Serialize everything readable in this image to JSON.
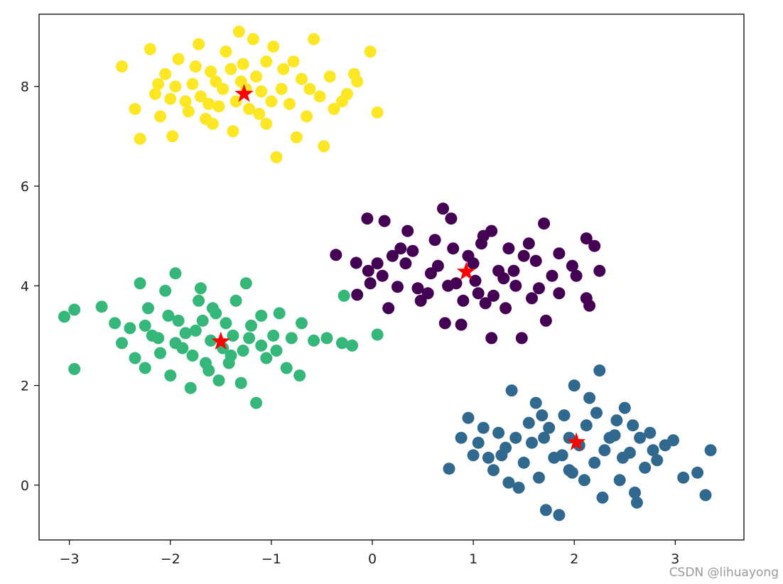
{
  "chart_data": {
    "type": "scatter",
    "title": "",
    "xlabel": "",
    "ylabel": "",
    "xlim": [
      -3.3,
      3.68
    ],
    "ylim": [
      -1.1,
      9.45
    ],
    "xticks": [
      {
        "value": -3,
        "label": "−3"
      },
      {
        "value": -2,
        "label": "−2"
      },
      {
        "value": -1,
        "label": "−1"
      },
      {
        "value": 0,
        "label": "0"
      },
      {
        "value": 1,
        "label": "1"
      },
      {
        "value": 2,
        "label": "2"
      },
      {
        "value": 3,
        "label": "3"
      }
    ],
    "yticks": [
      {
        "value": 0,
        "label": "0"
      },
      {
        "value": 2,
        "label": "2"
      },
      {
        "value": 4,
        "label": "4"
      },
      {
        "value": 6,
        "label": "6"
      },
      {
        "value": 8,
        "label": "8"
      }
    ],
    "grid": false,
    "legend": "none",
    "clusters": [
      {
        "color": "#440154",
        "centroid": [
          0.93,
          4.28
        ],
        "points": [
          [
            -0.36,
            4.62
          ],
          [
            -0.16,
            4.46
          ],
          [
            -0.04,
            4.3
          ],
          [
            0.05,
            4.45
          ],
          [
            -0.05,
            5.35
          ],
          [
            0.12,
            5.3
          ],
          [
            -0.15,
            3.82
          ],
          [
            0.16,
            3.55
          ],
          [
            -0.02,
            4.05
          ],
          [
            0.1,
            4.2
          ],
          [
            0.25,
            3.98
          ],
          [
            0.33,
            4.45
          ],
          [
            0.4,
            4.7
          ],
          [
            0.48,
            3.7
          ],
          [
            0.55,
            3.85
          ],
          [
            0.62,
            4.92
          ],
          [
            0.7,
            5.55
          ],
          [
            0.78,
            5.35
          ],
          [
            0.83,
            4.05
          ],
          [
            0.88,
            3.22
          ],
          [
            0.72,
            3.25
          ],
          [
            0.95,
            4.6
          ],
          [
            1.02,
            4.1
          ],
          [
            1.08,
            4.85
          ],
          [
            1.12,
            3.65
          ],
          [
            1.18,
            5.1
          ],
          [
            1.25,
            4.3
          ],
          [
            1.32,
            3.55
          ],
          [
            1.35,
            4.75
          ],
          [
            1.42,
            4.0
          ],
          [
            1.48,
            2.95
          ],
          [
            1.58,
            3.75
          ],
          [
            1.62,
            4.5
          ],
          [
            1.7,
            5.25
          ],
          [
            1.78,
            4.2
          ],
          [
            1.85,
            3.85
          ],
          [
            1.98,
            4.4
          ],
          [
            2.12,
            4.95
          ],
          [
            2.25,
            4.3
          ],
          [
            2.2,
            4.8
          ],
          [
            2.12,
            3.75
          ],
          [
            2.15,
            3.6
          ],
          [
            1.72,
            3.3
          ],
          [
            1.18,
            2.95
          ],
          [
            0.58,
            4.25
          ],
          [
            0.35,
            5.1
          ],
          [
            0.65,
            4.4
          ],
          [
            0.8,
            4.75
          ],
          [
            1.05,
            3.85
          ],
          [
            1.3,
            4.15
          ],
          [
            1.5,
            4.6
          ],
          [
            1.65,
            3.95
          ],
          [
            0.45,
            3.95
          ],
          [
            0.9,
            3.7
          ],
          [
            1.1,
            5.0
          ],
          [
            1.4,
            4.3
          ],
          [
            0.75,
            4.0
          ],
          [
            1.0,
            4.45
          ],
          [
            1.2,
            3.8
          ],
          [
            1.55,
            4.85
          ],
          [
            1.85,
            4.65
          ],
          [
            0.28,
            4.75
          ],
          [
            2.02,
            4.2
          ],
          [
            0.2,
            4.6
          ]
        ]
      },
      {
        "color": "#31688e",
        "centroid": [
          2.02,
          0.86
        ],
        "points": [
          [
            0.76,
            0.33
          ],
          [
            0.88,
            0.95
          ],
          [
            0.95,
            1.35
          ],
          [
            1.0,
            0.6
          ],
          [
            1.05,
            0.85
          ],
          [
            1.1,
            1.15
          ],
          [
            1.15,
            0.55
          ],
          [
            1.2,
            0.3
          ],
          [
            1.25,
            1.05
          ],
          [
            1.32,
            0.75
          ],
          [
            1.35,
            0.05
          ],
          [
            1.38,
            1.9
          ],
          [
            1.45,
            -0.05
          ],
          [
            1.5,
            0.45
          ],
          [
            1.55,
            1.25
          ],
          [
            1.62,
            1.65
          ],
          [
            1.7,
            0.95
          ],
          [
            1.72,
            -0.5
          ],
          [
            1.8,
            0.55
          ],
          [
            1.85,
            -0.6
          ],
          [
            1.9,
            1.4
          ],
          [
            1.95,
            0.3
          ],
          [
            2.0,
            2.0
          ],
          [
            2.05,
            0.8
          ],
          [
            2.12,
            1.2
          ],
          [
            2.2,
            0.45
          ],
          [
            2.25,
            2.3
          ],
          [
            2.28,
            -0.25
          ],
          [
            2.35,
            0.95
          ],
          [
            2.42,
            1.3
          ],
          [
            2.45,
            0.1
          ],
          [
            2.5,
            1.55
          ],
          [
            2.55,
            0.65
          ],
          [
            2.6,
            -0.15
          ],
          [
            2.62,
            -0.35
          ],
          [
            2.7,
            0.35
          ],
          [
            2.75,
            1.05
          ],
          [
            2.82,
            0.5
          ],
          [
            2.9,
            0.8
          ],
          [
            2.98,
            0.9
          ],
          [
            3.08,
            0.15
          ],
          [
            3.22,
            0.25
          ],
          [
            3.3,
            -0.2
          ],
          [
            3.35,
            0.7
          ],
          [
            2.15,
            1.75
          ],
          [
            1.65,
            0.15
          ],
          [
            1.95,
            0.95
          ],
          [
            2.3,
            0.7
          ],
          [
            2.1,
            0.1
          ],
          [
            1.75,
            1.15
          ],
          [
            2.4,
            1.0
          ],
          [
            1.58,
            0.85
          ],
          [
            2.65,
            0.95
          ],
          [
            1.88,
            0.6
          ],
          [
            2.48,
            0.55
          ],
          [
            1.42,
            0.95
          ],
          [
            2.22,
            1.45
          ],
          [
            1.98,
            0.25
          ],
          [
            2.58,
            1.2
          ],
          [
            1.68,
            1.4
          ],
          [
            2.78,
            0.7
          ],
          [
            1.28,
            0.6
          ]
        ]
      },
      {
        "color": "#35b779",
        "centroid": [
          -1.5,
          2.88
        ],
        "points": [
          [
            -3.05,
            3.38
          ],
          [
            -2.95,
            3.52
          ],
          [
            -2.95,
            2.33
          ],
          [
            -2.68,
            3.58
          ],
          [
            -2.55,
            3.25
          ],
          [
            -2.48,
            2.85
          ],
          [
            -2.4,
            3.15
          ],
          [
            -2.35,
            2.55
          ],
          [
            -2.3,
            4.05
          ],
          [
            -2.25,
            2.35
          ],
          [
            -2.22,
            3.55
          ],
          [
            -2.18,
            3.0
          ],
          [
            -2.1,
            2.65
          ],
          [
            -2.05,
            3.9
          ],
          [
            -2.0,
            2.2
          ],
          [
            -1.95,
            4.25
          ],
          [
            -1.92,
            3.3
          ],
          [
            -1.88,
            2.75
          ],
          [
            -1.8,
            1.95
          ],
          [
            -1.75,
            3.1
          ],
          [
            -1.7,
            3.95
          ],
          [
            -1.65,
            2.45
          ],
          [
            -1.58,
            3.55
          ],
          [
            -1.52,
            2.1
          ],
          [
            -1.45,
            3.25
          ],
          [
            -1.4,
            2.6
          ],
          [
            -1.35,
            3.7
          ],
          [
            -1.3,
            2.05
          ],
          [
            -1.25,
            4.05
          ],
          [
            -1.22,
            2.95
          ],
          [
            -1.15,
            1.65
          ],
          [
            -1.1,
            3.4
          ],
          [
            -1.05,
            2.55
          ],
          [
            -0.98,
            3.0
          ],
          [
            -0.92,
            3.45
          ],
          [
            -0.85,
            2.35
          ],
          [
            -0.8,
            2.95
          ],
          [
            -0.72,
            2.2
          ],
          [
            -0.7,
            3.25
          ],
          [
            -0.58,
            2.9
          ],
          [
            -0.45,
            2.95
          ],
          [
            -0.3,
            2.85
          ],
          [
            -0.2,
            2.8
          ],
          [
            -0.28,
            3.8
          ],
          [
            0.05,
            3.02
          ],
          [
            -1.6,
            2.9
          ],
          [
            -1.85,
            3.05
          ],
          [
            -1.48,
            2.75
          ],
          [
            -1.68,
            3.3
          ],
          [
            -1.38,
            3.0
          ],
          [
            -1.78,
            2.6
          ],
          [
            -1.28,
            2.7
          ],
          [
            -2.12,
            2.95
          ],
          [
            -1.1,
            2.8
          ],
          [
            -1.55,
            3.45
          ],
          [
            -1.95,
            2.85
          ],
          [
            -1.42,
            2.45
          ],
          [
            -1.72,
            3.7
          ],
          [
            -0.95,
            2.7
          ],
          [
            -2.25,
            3.2
          ],
          [
            -1.2,
            3.2
          ],
          [
            -1.62,
            2.3
          ],
          [
            -2.02,
            3.4
          ]
        ]
      },
      {
        "color": "#fde725",
        "centroid": [
          -1.27,
          7.85
        ],
        "points": [
          [
            -2.48,
            8.4
          ],
          [
            -2.35,
            7.55
          ],
          [
            -2.3,
            6.95
          ],
          [
            -2.2,
            8.75
          ],
          [
            -2.15,
            7.85
          ],
          [
            -2.1,
            7.4
          ],
          [
            -2.05,
            8.25
          ],
          [
            -1.98,
            7.0
          ],
          [
            -1.92,
            8.55
          ],
          [
            -1.85,
            7.7
          ],
          [
            -1.78,
            8.05
          ],
          [
            -1.72,
            8.85
          ],
          [
            -1.65,
            7.35
          ],
          [
            -1.6,
            8.3
          ],
          [
            -1.52,
            7.6
          ],
          [
            -1.45,
            8.7
          ],
          [
            -1.38,
            7.1
          ],
          [
            -1.32,
            9.1
          ],
          [
            -1.28,
            8.45
          ],
          [
            -1.22,
            7.55
          ],
          [
            -1.18,
            8.95
          ],
          [
            -1.1,
            7.9
          ],
          [
            -1.05,
            7.25
          ],
          [
            -0.98,
            8.8
          ],
          [
            -0.95,
            6.58
          ],
          [
            -0.88,
            8.35
          ],
          [
            -0.82,
            7.65
          ],
          [
            -0.75,
            6.98
          ],
          [
            -0.7,
            8.15
          ],
          [
            -0.65,
            7.4
          ],
          [
            -0.58,
            8.95
          ],
          [
            -0.52,
            7.8
          ],
          [
            -0.48,
            6.8
          ],
          [
            -0.42,
            8.2
          ],
          [
            -0.38,
            7.55
          ],
          [
            -0.3,
            7.7
          ],
          [
            -0.25,
            7.85
          ],
          [
            -0.18,
            8.25
          ],
          [
            -0.15,
            8.1
          ],
          [
            -0.02,
            8.7
          ],
          [
            0.05,
            7.48
          ],
          [
            -1.48,
            7.95
          ],
          [
            -1.7,
            7.8
          ],
          [
            -1.35,
            7.7
          ],
          [
            -1.55,
            8.1
          ],
          [
            -1.15,
            8.2
          ],
          [
            -1.82,
            7.5
          ],
          [
            -1.25,
            7.95
          ],
          [
            -1.95,
            8.0
          ],
          [
            -1.05,
            8.5
          ],
          [
            -1.4,
            8.35
          ],
          [
            -1.62,
            7.65
          ],
          [
            -0.9,
            7.95
          ],
          [
            -2.0,
            7.75
          ],
          [
            -1.12,
            7.45
          ],
          [
            -1.75,
            8.4
          ],
          [
            -0.78,
            8.5
          ],
          [
            -1.3,
            8.1
          ],
          [
            -1.58,
            7.25
          ],
          [
            -0.62,
            7.95
          ],
          [
            -2.12,
            8.05
          ],
          [
            -1.0,
            7.7
          ]
        ]
      }
    ]
  },
  "watermark": "CSDN @lihuayong"
}
